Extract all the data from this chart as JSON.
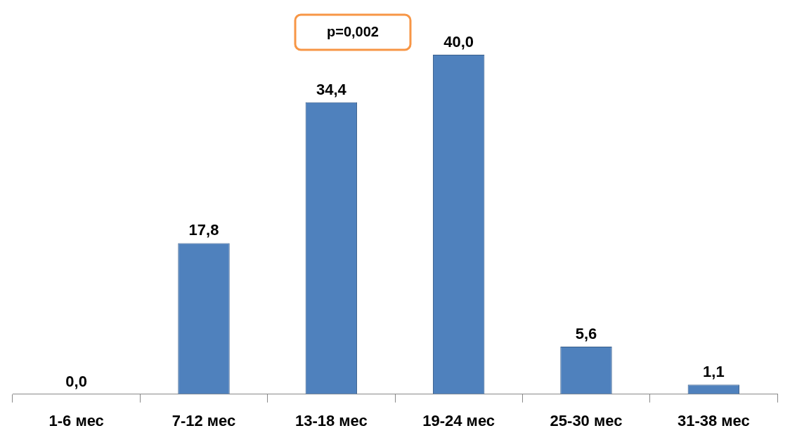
{
  "chart_data": {
    "type": "bar",
    "categories": [
      "1-6 мес",
      "7-12 мес",
      "13-18 мес",
      "19-24 мес",
      "25-30 мес",
      "31-38 мес"
    ],
    "values": [
      0.0,
      17.8,
      34.4,
      40.0,
      5.6,
      1.1
    ],
    "value_labels": [
      "0,0",
      "17,8",
      "34,4",
      "40,0",
      "5,6",
      "1,1"
    ],
    "color": "#4f81bd",
    "annotations": [
      "p=0,002"
    ]
  }
}
